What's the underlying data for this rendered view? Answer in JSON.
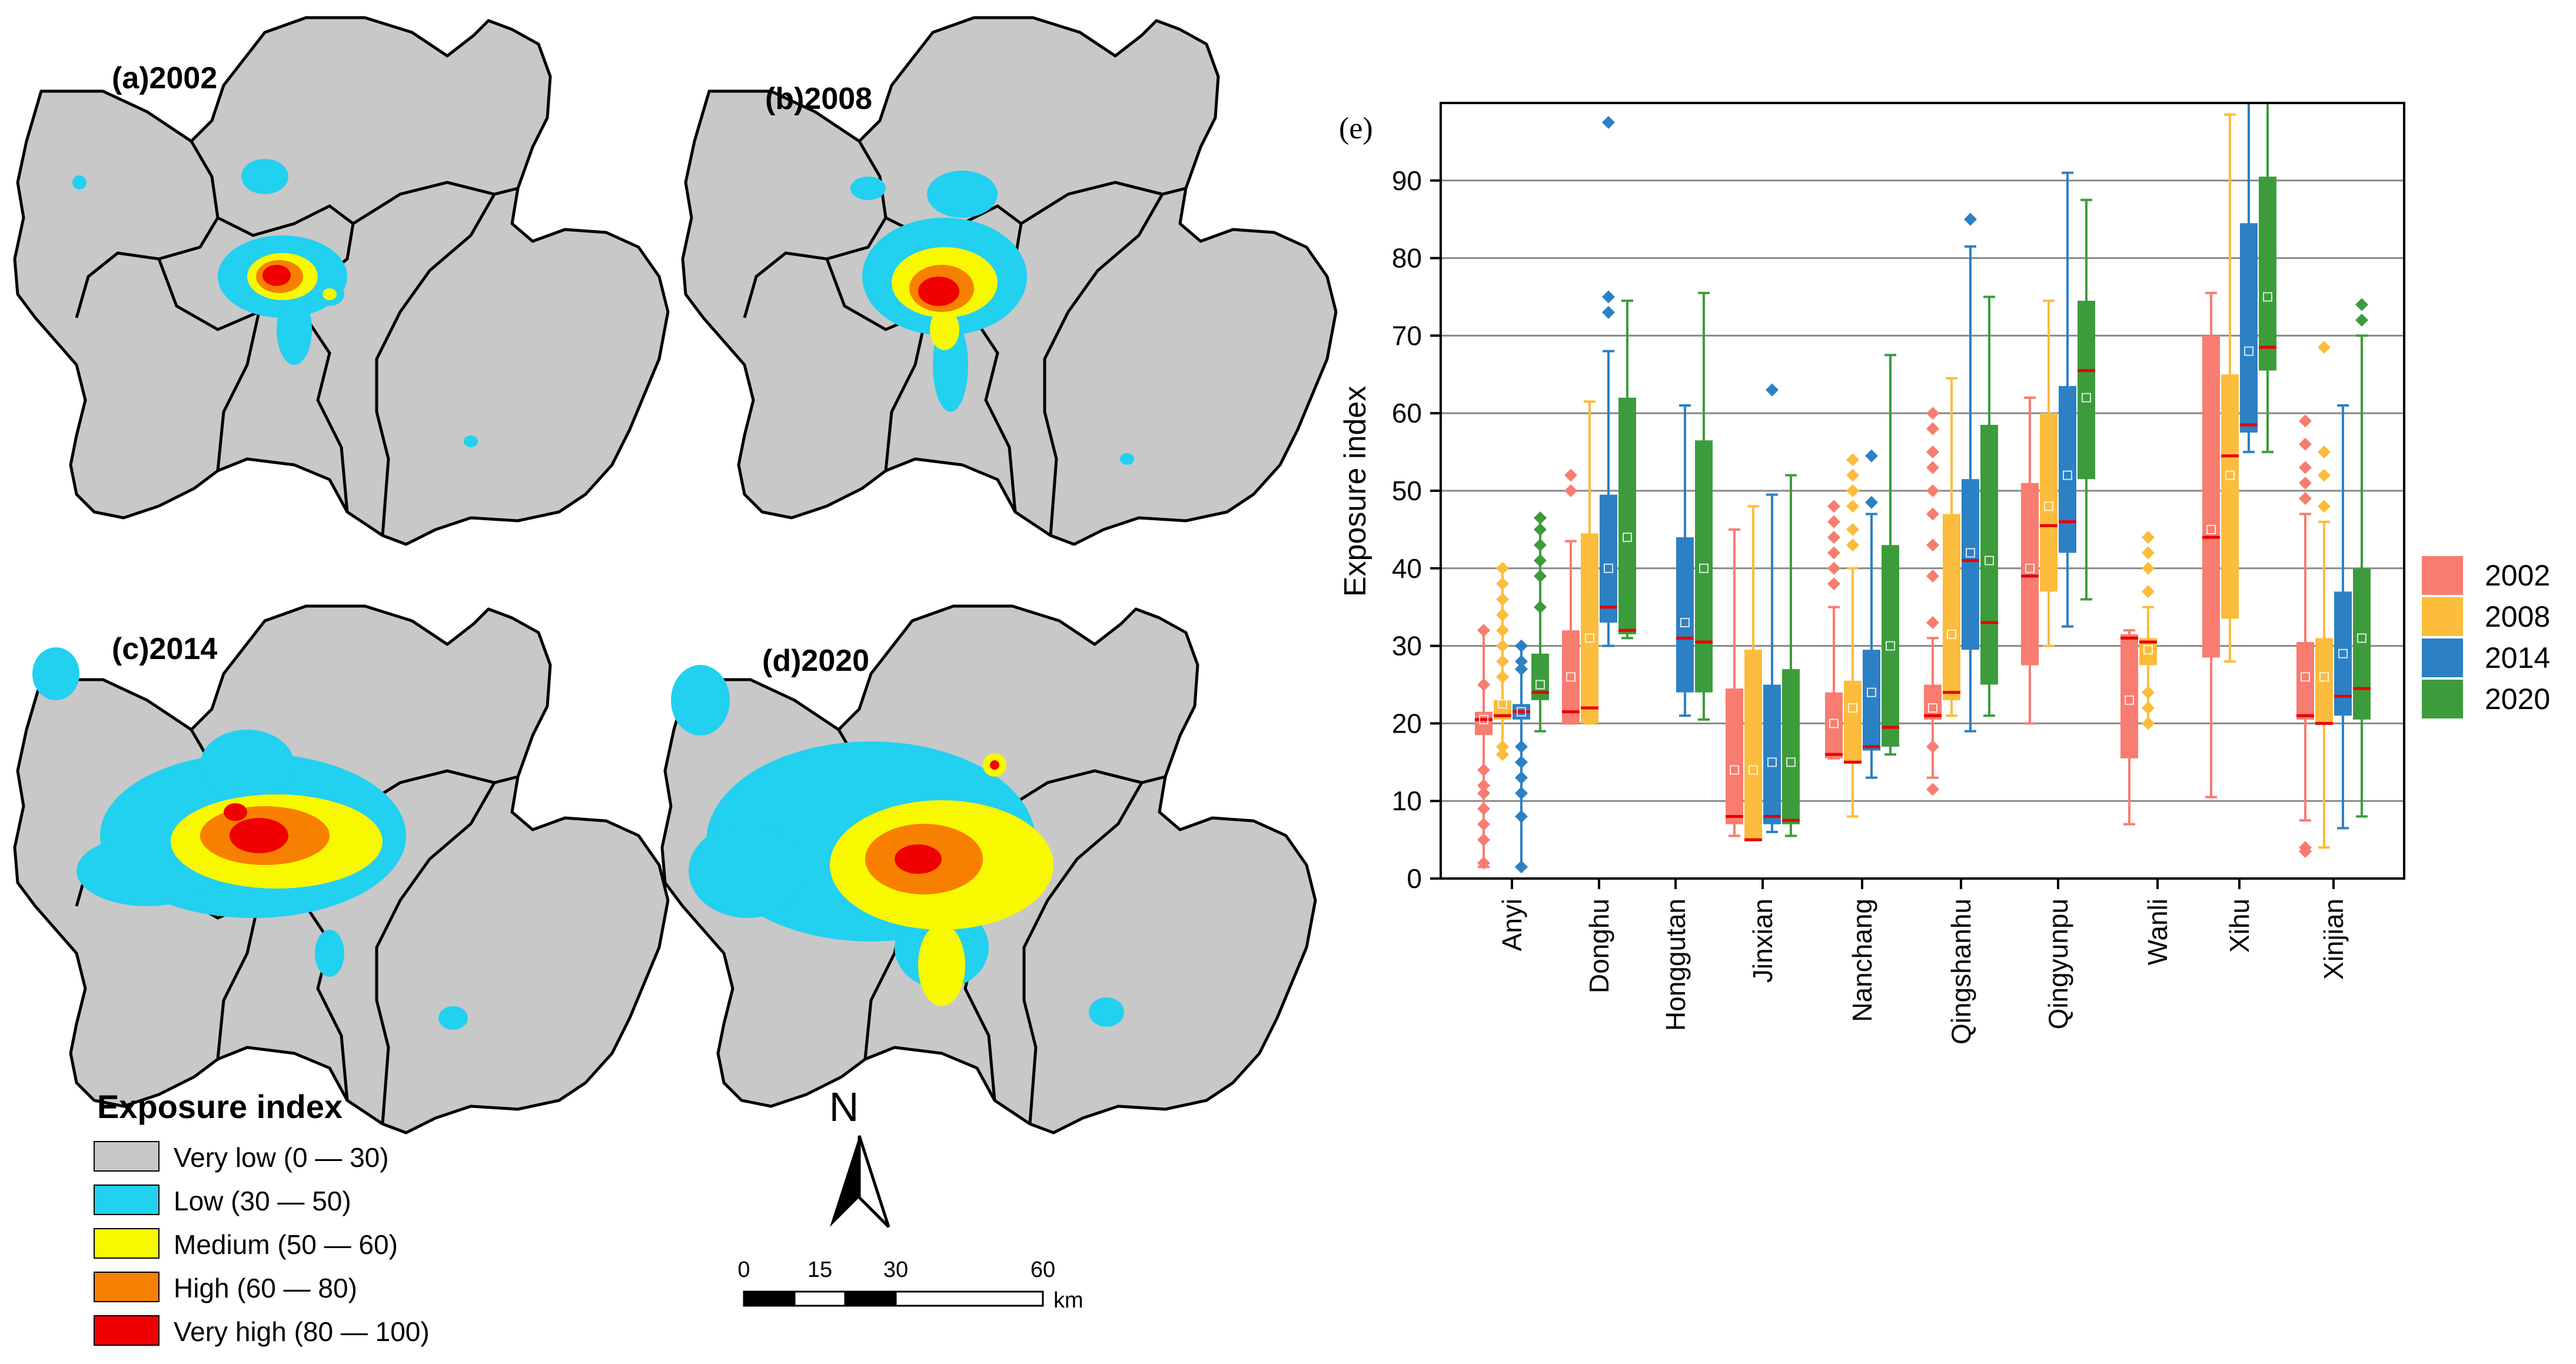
{
  "colors": {
    "very_low": "#c8c8c8",
    "low": "#22d0f0",
    "medium": "#f8f800",
    "high": "#f88000",
    "very_high": "#f00000",
    "s2002": "#f87c70",
    "s2008": "#fcbc3c",
    "s2014": "#2c80c4",
    "s2020": "#3c9c3c",
    "median": "#e80000",
    "grid": "#888888"
  },
  "maps": [
    {
      "label": "(a)2002"
    },
    {
      "label": "(b)2008"
    },
    {
      "label": "(c)2014"
    },
    {
      "label": "(d)2020"
    }
  ],
  "map_legend": {
    "title": "Exposure index",
    "items": [
      {
        "label": "Very low (0 — 30)",
        "color": "#c8c8c8"
      },
      {
        "label": "Low (30 — 50)",
        "color": "#22d0f0"
      },
      {
        "label": "Medium (50 — 60)",
        "color": "#f8f800"
      },
      {
        "label": "High (60 — 80)",
        "color": "#f88000"
      },
      {
        "label": "Very high (80 — 100)",
        "color": "#f00000"
      }
    ]
  },
  "north_arrow": {
    "label": "N"
  },
  "scale_bar": {
    "ticks": [
      "0",
      "15",
      "30",
      "60"
    ],
    "unit": "km"
  },
  "chart_data": {
    "type": "box",
    "panel_label": "(e)",
    "ylabel": "Exposure index",
    "xlabel": "",
    "ylim": [
      0,
      100
    ],
    "yticks": [
      0,
      10,
      20,
      30,
      40,
      50,
      60,
      70,
      80,
      90
    ],
    "grid": true,
    "legend_position": "right",
    "series_names": [
      "2002",
      "2008",
      "2014",
      "2020"
    ],
    "categories": [
      "Anyi",
      "Donghu",
      "Honggutan",
      "Jinxian",
      "Nanchang",
      "Qingshanhu",
      "Qingyunpu",
      "Wanli",
      "Xihu",
      "Xinjian"
    ],
    "groups": [
      {
        "name": "Anyi",
        "boxes": [
          {
            "series": "2002",
            "min": 1.5,
            "q1": 18.5,
            "median": 20.5,
            "q3": 21.5,
            "max": 32,
            "mean": 20.5,
            "outliers": [
              2,
              5,
              7,
              9,
              11,
              12,
              14,
              25,
              32
            ]
          },
          {
            "series": "2008",
            "min": 16,
            "q1": 20.5,
            "median": 21,
            "q3": 23,
            "max": 40,
            "mean": 22.5,
            "outliers": [
              16,
              17,
              26,
              28,
              30,
              32,
              34,
              36,
              38,
              40
            ]
          },
          {
            "series": "2014",
            "min": 1.5,
            "q1": 20.5,
            "median": 21.5,
            "q3": 22.5,
            "max": 30,
            "mean": 21.5,
            "outliers": [
              1.5,
              8,
              11,
              13,
              15,
              17,
              27,
              28,
              30
            ]
          },
          {
            "series": "2020",
            "min": 19,
            "q1": 23,
            "median": 24,
            "q3": 29,
            "max": 46.5,
            "mean": 25,
            "outliers": [
              35,
              39,
              41,
              43,
              45,
              46.5
            ]
          }
        ]
      },
      {
        "name": "Donghu",
        "boxes": [
          {
            "series": "2002",
            "min": 20,
            "q1": 20,
            "median": 21.5,
            "q3": 32,
            "max": 43.5,
            "mean": 26,
            "outliers": [
              50,
              52
            ]
          },
          {
            "series": "2008",
            "min": 20,
            "q1": 20,
            "median": 22,
            "q3": 44.5,
            "max": 61.5,
            "mean": 31,
            "outliers": []
          },
          {
            "series": "2014",
            "min": 30,
            "q1": 33,
            "median": 35,
            "q3": 49.5,
            "max": 68,
            "mean": 40,
            "outliers": [
              73,
              75,
              97.5
            ]
          },
          {
            "series": "2020",
            "min": 31,
            "q1": 31.5,
            "median": 32,
            "q3": 62,
            "max": 74.5,
            "mean": 44,
            "outliers": []
          }
        ]
      },
      {
        "name": "Honggutan",
        "boxes": [
          {
            "series": "2014",
            "min": 21,
            "q1": 24,
            "median": 31,
            "q3": 44,
            "max": 61,
            "mean": 33,
            "outliers": []
          },
          {
            "series": "2020",
            "min": 20.5,
            "q1": 24,
            "median": 30.5,
            "q3": 56.5,
            "max": 75.5,
            "mean": 40,
            "outliers": []
          }
        ]
      },
      {
        "name": "Jinxian",
        "boxes": [
          {
            "series": "2002",
            "min": 5.5,
            "q1": 7,
            "median": 8,
            "q3": 24.5,
            "max": 45,
            "mean": 14,
            "outliers": []
          },
          {
            "series": "2008",
            "min": 5,
            "q1": 5,
            "median": 5,
            "q3": 29.5,
            "max": 48,
            "mean": 14,
            "outliers": []
          },
          {
            "series": "2014",
            "min": 6,
            "q1": 7,
            "median": 8,
            "q3": 25,
            "max": 49.5,
            "mean": 15,
            "outliers": [
              63
            ]
          },
          {
            "series": "2020",
            "min": 5.5,
            "q1": 7,
            "median": 7.5,
            "q3": 27,
            "max": 52,
            "mean": 15,
            "outliers": []
          }
        ]
      },
      {
        "name": "Nanchang",
        "boxes": [
          {
            "series": "2002",
            "min": 15.5,
            "q1": 15.5,
            "median": 16,
            "q3": 24,
            "max": 35,
            "mean": 20,
            "outliers": [
              38,
              40,
              42,
              44,
              46,
              48
            ]
          },
          {
            "series": "2008",
            "min": 8,
            "q1": 15,
            "median": 15,
            "q3": 25.5,
            "max": 40,
            "mean": 22,
            "outliers": [
              43,
              45,
              48,
              50,
              52,
              54
            ]
          },
          {
            "series": "2014",
            "min": 13,
            "q1": 16.5,
            "median": 17,
            "q3": 29.5,
            "max": 47,
            "mean": 24,
            "outliers": [
              48.5,
              54.5
            ]
          },
          {
            "series": "2020",
            "min": 16,
            "q1": 17,
            "median": 19.5,
            "q3": 43,
            "max": 67.5,
            "mean": 30,
            "outliers": []
          }
        ]
      },
      {
        "name": "Qingshanhu",
        "boxes": [
          {
            "series": "2002",
            "min": 13,
            "q1": 20.5,
            "median": 21,
            "q3": 25,
            "max": 31,
            "mean": 22,
            "outliers": [
              11.5,
              17,
              33,
              39,
              43,
              47,
              50,
              53,
              55,
              58,
              60
            ]
          },
          {
            "series": "2008",
            "min": 21,
            "q1": 23,
            "median": 24,
            "q3": 47,
            "max": 64.5,
            "mean": 31.5,
            "outliers": []
          },
          {
            "series": "2014",
            "min": 19,
            "q1": 29.5,
            "median": 41,
            "q3": 51.5,
            "max": 81.5,
            "mean": 42,
            "outliers": [
              85
            ]
          },
          {
            "series": "2020",
            "min": 21,
            "q1": 25,
            "median": 33,
            "q3": 58.5,
            "max": 75,
            "mean": 41,
            "outliers": []
          }
        ]
      },
      {
        "name": "Qingyunpu",
        "boxes": [
          {
            "series": "2002",
            "min": 20,
            "q1": 27.5,
            "median": 39,
            "q3": 51,
            "max": 62,
            "mean": 40,
            "outliers": []
          },
          {
            "series": "2008",
            "min": 30,
            "q1": 37,
            "median": 45.5,
            "q3": 60,
            "max": 74.5,
            "mean": 48,
            "outliers": []
          },
          {
            "series": "2014",
            "min": 32.5,
            "q1": 42,
            "median": 46,
            "q3": 63.5,
            "max": 91,
            "mean": 52,
            "outliers": []
          },
          {
            "series": "2020",
            "min": 36,
            "q1": 51.5,
            "median": 65.5,
            "q3": 74.5,
            "max": 87.5,
            "mean": 62,
            "outliers": []
          }
        ]
      },
      {
        "name": "Wanli",
        "boxes": [
          {
            "series": "2002",
            "min": 7,
            "q1": 15.5,
            "median": 31,
            "q3": 31.5,
            "max": 32,
            "mean": 23,
            "outliers": []
          },
          {
            "series": "2008",
            "min": 20,
            "q1": 27.5,
            "median": 30.5,
            "q3": 31,
            "max": 35,
            "mean": 29.5,
            "outliers": [
              20,
              22,
              24,
              37,
              40,
              42,
              44
            ]
          }
        ]
      },
      {
        "name": "Xihu",
        "boxes": [
          {
            "series": "2002",
            "min": 10.5,
            "q1": 28.5,
            "median": 44,
            "q3": 70,
            "max": 75.5,
            "mean": 45,
            "outliers": []
          },
          {
            "series": "2008",
            "min": 28,
            "q1": 33.5,
            "median": 54.5,
            "q3": 65,
            "max": 98.5,
            "mean": 52,
            "outliers": []
          },
          {
            "series": "2014",
            "min": 55,
            "q1": 57.5,
            "median": 58.5,
            "q3": 84.5,
            "max": 100,
            "mean": 68,
            "outliers": []
          },
          {
            "series": "2020",
            "min": 55,
            "q1": 65.5,
            "median": 68.5,
            "q3": 90.5,
            "max": 100,
            "mean": 75,
            "outliers": []
          }
        ]
      },
      {
        "name": "Xinjian",
        "boxes": [
          {
            "series": "2002",
            "min": 7.5,
            "q1": 20.5,
            "median": 21,
            "q3": 30.5,
            "max": 47,
            "mean": 26,
            "outliers": [
              3.5,
              4,
              49,
              51,
              53,
              56,
              59
            ]
          },
          {
            "series": "2008",
            "min": 4,
            "q1": 20,
            "median": 20,
            "q3": 31,
            "max": 46,
            "mean": 26,
            "outliers": [
              48,
              52,
              55,
              68.5
            ]
          },
          {
            "series": "2014",
            "min": 6.5,
            "q1": 21,
            "median": 23.5,
            "q3": 37,
            "max": 61,
            "mean": 29,
            "outliers": []
          },
          {
            "series": "2020",
            "min": 8,
            "q1": 20.5,
            "median": 24.5,
            "q3": 40,
            "max": 70,
            "mean": 31,
            "outliers": [
              72,
              74
            ]
          }
        ]
      }
    ]
  }
}
